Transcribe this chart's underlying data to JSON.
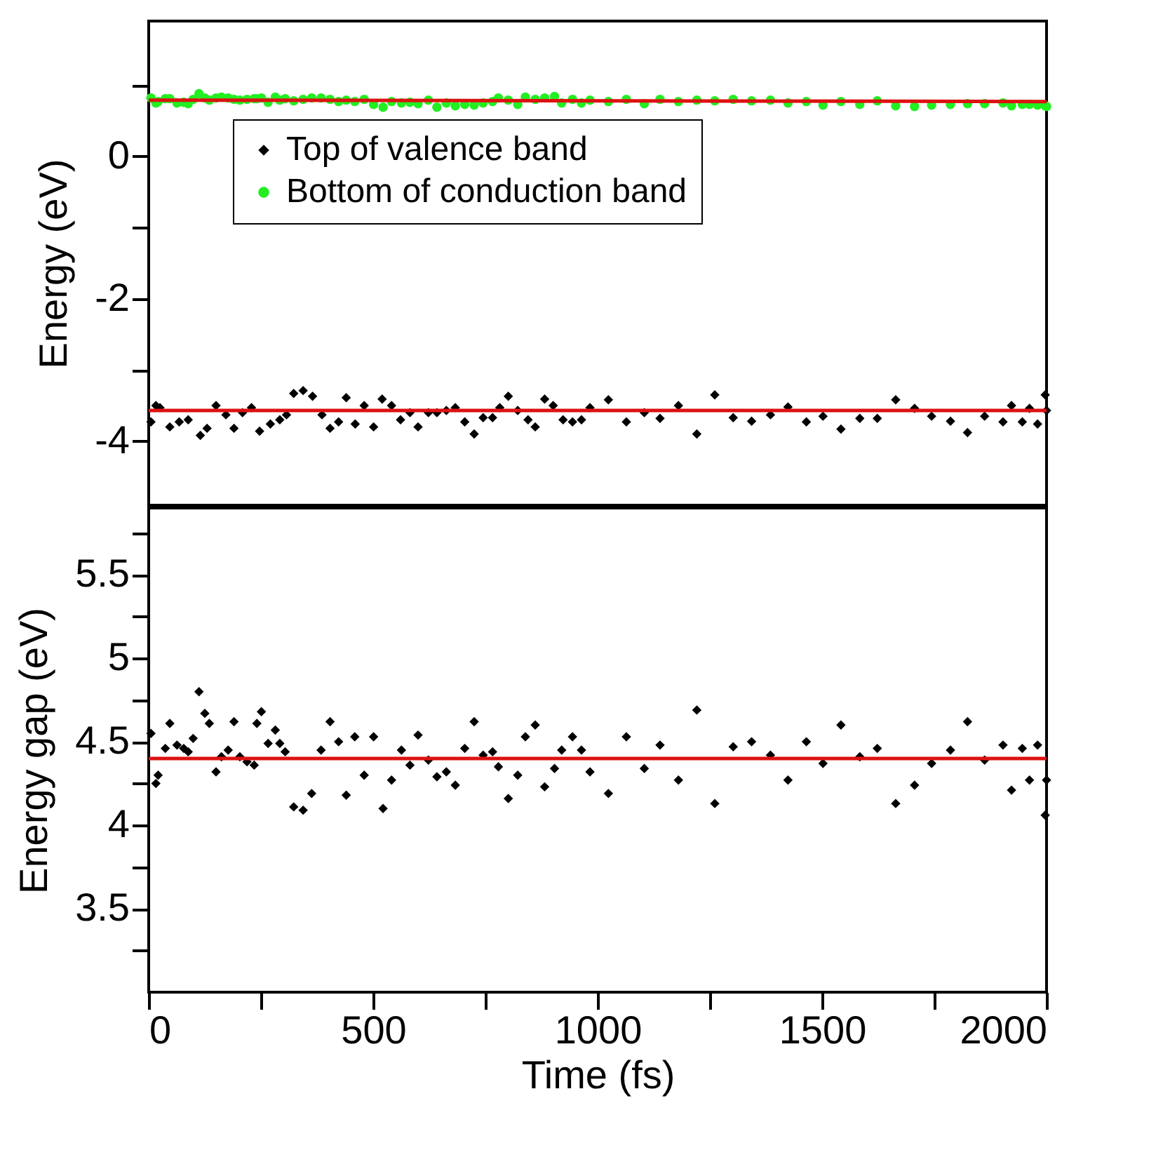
{
  "chart_data": [
    {
      "type": "scatter",
      "ylabel": "Energy (eV)",
      "xlim": [
        0,
        2000
      ],
      "ylim": [
        -4.9,
        1.9
      ],
      "yticks": [
        {
          "value": 1,
          "label": null
        },
        0,
        {
          "value": -1,
          "label": null
        },
        -2,
        {
          "value": -3,
          "label": null
        },
        -4
      ],
      "tick_labels": "y",
      "legend": "top left",
      "series": [
        {
          "name": "Top of valence band",
          "color": "#000000",
          "marker": "diamond",
          "x": [
            5,
            16,
            25,
            47,
            68,
            88,
            115,
            130,
            150,
            172,
            190,
            209,
            229,
            247,
            271,
            292,
            307,
            323,
            344,
            365,
            386,
            404,
            423,
            440,
            460,
            480,
            501,
            520,
            541,
            561,
            582,
            600,
            623,
            642,
            663,
            683,
            704,
            725,
            745,
            766,
            782,
            801,
            822,
            845,
            861,
            882,
            901,
            923,
            944,
            964,
            983,
            1024,
            1064,
            1104,
            1139,
            1180,
            1221,
            1261,
            1302,
            1343,
            1385,
            1424,
            1465,
            1502,
            1542,
            1584,
            1623,
            1664,
            1706,
            1744,
            1786,
            1824,
            1862,
            1903,
            1922,
            1946,
            1962,
            1980,
            1997,
            2000
          ],
          "values": [
            -3.73,
            -3.5,
            -3.53,
            -3.8,
            -3.73,
            -3.7,
            -3.92,
            -3.82,
            -3.5,
            -3.63,
            -3.82,
            -3.6,
            -3.53,
            -3.86,
            -3.76,
            -3.7,
            -3.63,
            -3.33,
            -3.29,
            -3.37,
            -3.63,
            -3.82,
            -3.73,
            -3.39,
            -3.76,
            -3.5,
            -3.8,
            -3.41,
            -3.5,
            -3.7,
            -3.6,
            -3.8,
            -3.6,
            -3.6,
            -3.57,
            -3.53,
            -3.73,
            -3.9,
            -3.67,
            -3.67,
            -3.53,
            -3.37,
            -3.57,
            -3.7,
            -3.8,
            -3.41,
            -3.5,
            -3.7,
            -3.73,
            -3.7,
            -3.53,
            -3.42,
            -3.73,
            -3.6,
            -3.68,
            -3.5,
            -3.9,
            -3.35,
            -3.67,
            -3.72,
            -3.63,
            -3.52,
            -3.73,
            -3.65,
            -3.83,
            -3.68,
            -3.68,
            -3.42,
            -3.54,
            -3.65,
            -3.72,
            -3.88,
            -3.65,
            -3.73,
            -3.5,
            -3.73,
            -3.54,
            -3.76,
            -3.35,
            -3.57
          ]
        },
        {
          "name": "Bottom of conduction band",
          "color": "#22ee22",
          "marker": "circle",
          "x": [
            5,
            16,
            21,
            37,
            47,
            63,
            78,
            88,
            99,
            112,
            125,
            135,
            150,
            162,
            177,
            190,
            203,
            219,
            235,
            241,
            251,
            266,
            282,
            292,
            304,
            323,
            344,
            363,
            384,
            404,
            423,
            440,
            459,
            480,
            501,
            522,
            541,
            563,
            582,
            600,
            623,
            642,
            663,
            683,
            704,
            725,
            745,
            766,
            779,
            801,
            822,
            839,
            861,
            882,
            904,
            920,
            944,
            964,
            983,
            1024,
            1064,
            1104,
            1139,
            1180,
            1221,
            1261,
            1302,
            1343,
            1385,
            1424,
            1465,
            1502,
            1542,
            1584,
            1623,
            1664,
            1706,
            1744,
            1786,
            1824,
            1862,
            1903,
            1922,
            1946,
            1962,
            1980,
            1997,
            2000
          ],
          "values": [
            0.82,
            0.75,
            0.77,
            0.81,
            0.81,
            0.75,
            0.76,
            0.74,
            0.8,
            0.88,
            0.82,
            0.79,
            0.82,
            0.83,
            0.82,
            0.8,
            0.79,
            0.8,
            0.81,
            0.81,
            0.82,
            0.76,
            0.83,
            0.79,
            0.81,
            0.78,
            0.8,
            0.82,
            0.82,
            0.8,
            0.77,
            0.79,
            0.77,
            0.8,
            0.73,
            0.69,
            0.77,
            0.75,
            0.76,
            0.74,
            0.79,
            0.69,
            0.75,
            0.71,
            0.73,
            0.72,
            0.75,
            0.77,
            0.82,
            0.79,
            0.73,
            0.83,
            0.8,
            0.82,
            0.84,
            0.75,
            0.8,
            0.75,
            0.79,
            0.77,
            0.8,
            0.74,
            0.8,
            0.77,
            0.79,
            0.78,
            0.8,
            0.78,
            0.79,
            0.75,
            0.77,
            0.72,
            0.77,
            0.73,
            0.78,
            0.71,
            0.7,
            0.72,
            0.73,
            0.74,
            0.74,
            0.75,
            0.71,
            0.73,
            0.73,
            0.72,
            0.71,
            0.7
          ]
        },
        {
          "type": "line",
          "color": "#dd1111",
          "line_style": "solid",
          "x": [
            0,
            2000
          ],
          "values": [
            0.79,
            0.77
          ]
        },
        {
          "type": "line",
          "color": "#dd1111",
          "line_style": "solid",
          "x": [
            0,
            2000
          ],
          "values": [
            -3.57,
            -3.57
          ]
        }
      ]
    },
    {
      "type": "scatter",
      "xlabel": "Time (fs)",
      "ylabel": "Energy gap (eV)",
      "xlim": [
        0,
        2000
      ],
      "xticks": [
        0,
        {
          "value": 250,
          "label": null
        },
        500,
        {
          "value": 750,
          "label": null
        },
        1000,
        {
          "value": 1250,
          "label": null
        },
        1500,
        {
          "value": 1750,
          "label": null
        },
        2000
      ],
      "ylim": [
        3,
        5.9
      ],
      "yticks": [
        {
          "value": 3.25,
          "label": null
        },
        3.5,
        {
          "value": 3.75,
          "label": null
        },
        4,
        {
          "value": 4.25,
          "label": null
        },
        4.5,
        {
          "value": 4.75,
          "label": null
        },
        5,
        {
          "value": 5.25,
          "label": null
        },
        5.5,
        {
          "value": 5.75,
          "label": null
        }
      ],
      "series": [
        {
          "color": "#000000",
          "marker": "diamond",
          "x": [
            5,
            16,
            21,
            37,
            47,
            63,
            78,
            88,
            99,
            112,
            125,
            135,
            150,
            162,
            177,
            190,
            203,
            219,
            235,
            241,
            251,
            266,
            282,
            292,
            304,
            323,
            344,
            363,
            384,
            404,
            423,
            440,
            459,
            480,
            501,
            522,
            541,
            563,
            582,
            600,
            623,
            642,
            663,
            683,
            704,
            725,
            745,
            766,
            779,
            801,
            822,
            839,
            861,
            882,
            904,
            920,
            944,
            964,
            983,
            1024,
            1064,
            1104,
            1139,
            1180,
            1221,
            1261,
            1302,
            1343,
            1385,
            1424,
            1465,
            1502,
            1542,
            1584,
            1623,
            1664,
            1706,
            1744,
            1786,
            1824,
            1862,
            1903,
            1922,
            1946,
            1962,
            1980,
            1997,
            2000
          ],
          "values": [
            4.55,
            4.25,
            4.3,
            4.46,
            4.61,
            4.48,
            4.46,
            4.44,
            4.52,
            4.8,
            4.67,
            4.61,
            4.32,
            4.41,
            4.45,
            4.62,
            4.41,
            4.38,
            4.36,
            4.61,
            4.68,
            4.49,
            4.57,
            4.49,
            4.44,
            4.11,
            4.09,
            4.19,
            4.45,
            4.62,
            4.5,
            4.18,
            4.53,
            4.3,
            4.53,
            4.1,
            4.27,
            4.45,
            4.36,
            4.54,
            4.39,
            4.29,
            4.32,
            4.24,
            4.46,
            4.62,
            4.42,
            4.44,
            4.35,
            4.16,
            4.3,
            4.53,
            4.6,
            4.23,
            4.34,
            4.45,
            4.53,
            4.45,
            4.32,
            4.19,
            4.53,
            4.34,
            4.48,
            4.27,
            4.69,
            4.13,
            4.47,
            4.5,
            4.42,
            4.27,
            4.5,
            4.37,
            4.6,
            4.41,
            4.46,
            4.13,
            4.24,
            4.37,
            4.45,
            4.62,
            4.39,
            4.48,
            4.21,
            4.46,
            4.27,
            4.48,
            4.06,
            4.27
          ]
        },
        {
          "type": "line",
          "color": "#dd1111",
          "line_style": "solid",
          "x": [
            0,
            2000
          ],
          "values": [
            4.4,
            4.4
          ]
        }
      ]
    }
  ]
}
